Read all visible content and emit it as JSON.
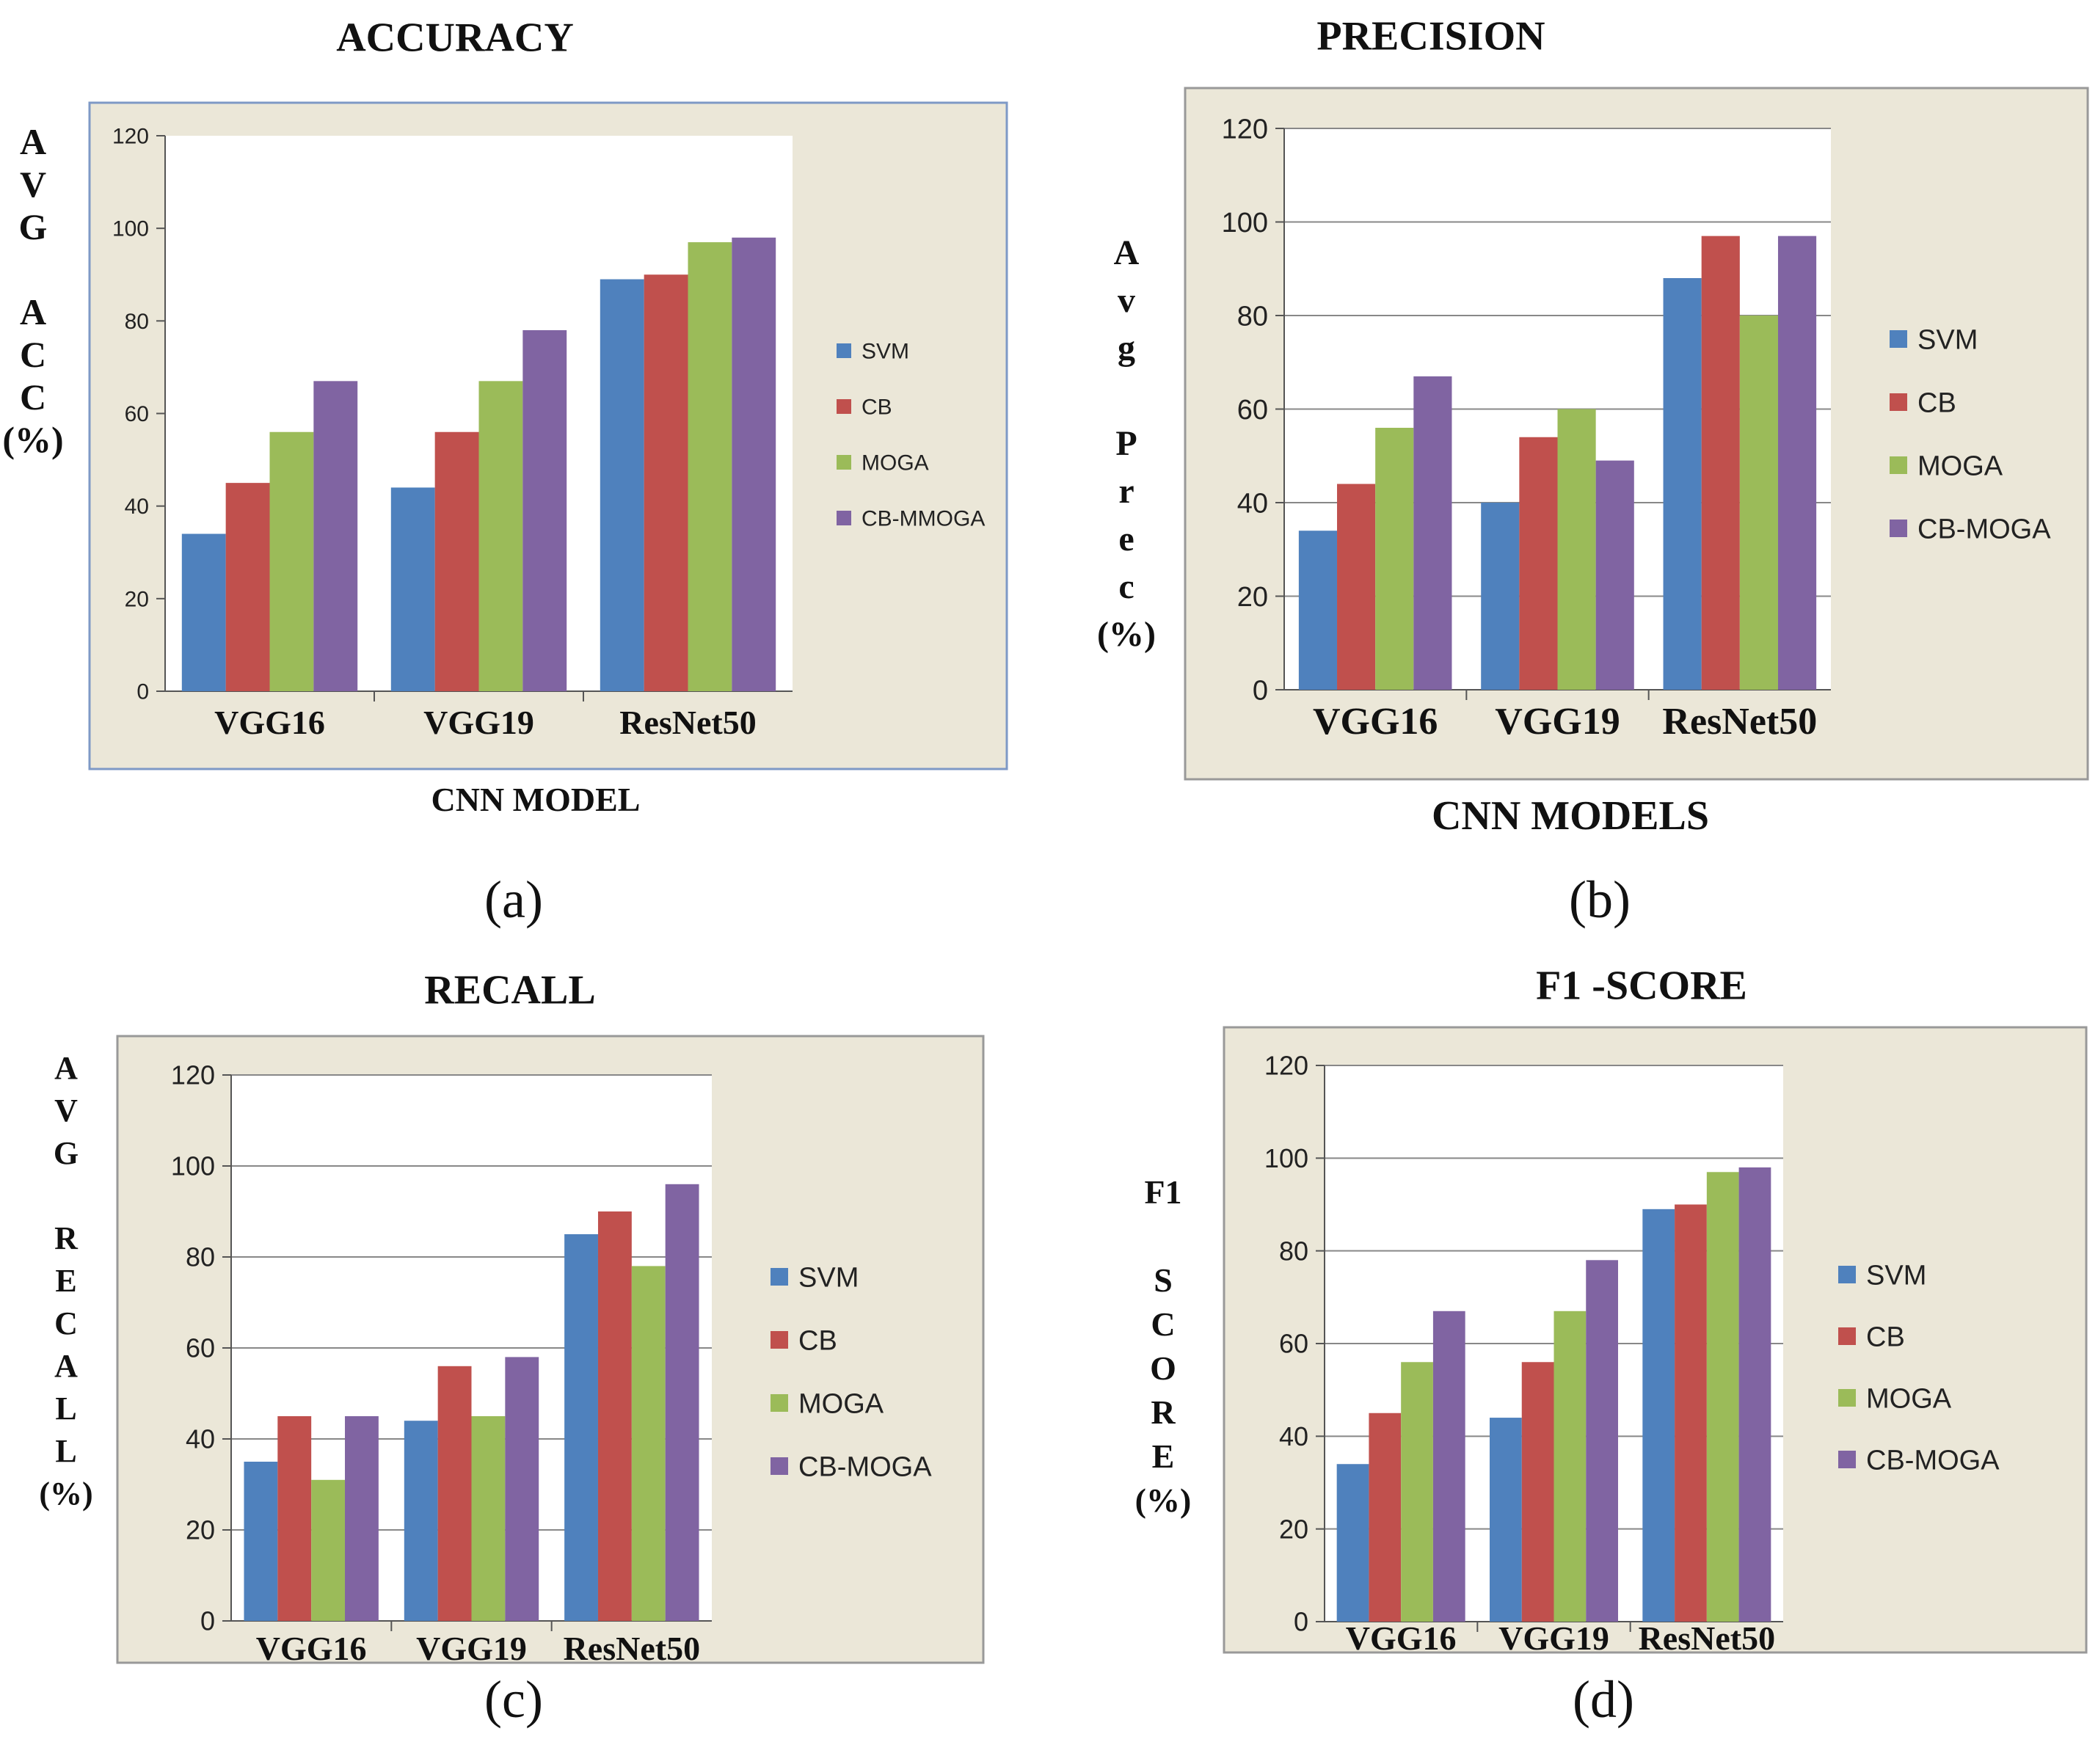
{
  "colors": {
    "SVM": "#4f81bd",
    "CB": "#c0504d",
    "MOGA": "#9bbb59",
    "CBMOGA": "#8064a2",
    "panel_bg": "#ebe7d8",
    "panel_border": "#7e99c6",
    "plot_bg": "#ffffff",
    "grid": "#888888"
  },
  "chart_data": [
    {
      "type": "bar",
      "panel_label": "(a)",
      "title": "ACCURACY",
      "ylabel": [
        "A",
        "V",
        "G",
        "",
        "A",
        "C",
        "C",
        "(%)"
      ],
      "xlabel": "CNN MODEL",
      "categories": [
        "VGG16",
        "VGG19",
        "ResNet50"
      ],
      "yticks": [
        "0",
        "20",
        "40",
        "60",
        "80",
        "100",
        "120"
      ],
      "ylim": [
        0,
        120
      ],
      "legend_position": "right",
      "series": [
        {
          "name": "SVM",
          "color_key": "SVM",
          "values": [
            34,
            44,
            89
          ]
        },
        {
          "name": "CB",
          "color_key": "CB",
          "values": [
            45,
            56,
            90
          ]
        },
        {
          "name": "MOGA",
          "color_key": "MOGA",
          "values": [
            56,
            67,
            97
          ]
        },
        {
          "name": "CB-MMOGA",
          "color_key": "CBMOGA",
          "values": [
            67,
            78,
            98
          ]
        }
      ]
    },
    {
      "type": "bar",
      "panel_label": "(b)",
      "title": "PRECISION",
      "ylabel": [
        "A",
        "v",
        "g",
        "",
        "P",
        "r",
        "e",
        "c",
        "(%)"
      ],
      "xlabel": "CNN MODELS",
      "categories": [
        "VGG16",
        "VGG19",
        "ResNet50"
      ],
      "yticks": [
        "0",
        "20",
        "40",
        "60",
        "80",
        "100",
        "120"
      ],
      "ylim": [
        0,
        120
      ],
      "legend_position": "right",
      "series": [
        {
          "name": "SVM",
          "color_key": "SVM",
          "values": [
            34,
            40,
            88
          ]
        },
        {
          "name": "CB",
          "color_key": "CB",
          "values": [
            44,
            54,
            97
          ]
        },
        {
          "name": "MOGA",
          "color_key": "MOGA",
          "values": [
            56,
            60,
            80
          ]
        },
        {
          "name": "CB-MOGA",
          "color_key": "CBMOGA",
          "values": [
            67,
            49,
            97
          ]
        }
      ]
    },
    {
      "type": "bar",
      "panel_label": "(c)",
      "title": "RECALL",
      "ylabel": [
        "A",
        "V",
        "G",
        "",
        "R",
        "E",
        "C",
        "A",
        "L",
        "L",
        "(%)"
      ],
      "xlabel": "",
      "categories": [
        "VGG16",
        "VGG19",
        "ResNet50"
      ],
      "yticks": [
        "0",
        "20",
        "40",
        "60",
        "80",
        "100",
        "120"
      ],
      "ylim": [
        0,
        120
      ],
      "legend_position": "right",
      "series": [
        {
          "name": "SVM",
          "color_key": "SVM",
          "values": [
            35,
            44,
            85
          ]
        },
        {
          "name": "CB",
          "color_key": "CB",
          "values": [
            45,
            56,
            90
          ]
        },
        {
          "name": "MOGA",
          "color_key": "MOGA",
          "values": [
            31,
            45,
            78
          ]
        },
        {
          "name": "CB-MOGA",
          "color_key": "CBMOGA",
          "values": [
            45,
            58,
            96
          ]
        }
      ]
    },
    {
      "type": "bar",
      "panel_label": "(d)",
      "title": "F1 -SCORE",
      "ylabel": [
        "F1",
        "",
        "S",
        "C",
        "O",
        "R",
        "E",
        "(%)"
      ],
      "xlabel": "",
      "categories": [
        "VGG16",
        "VGG19",
        "ResNet50"
      ],
      "yticks": [
        "0",
        "20",
        "40",
        "60",
        "80",
        "100",
        "120"
      ],
      "ylim": [
        0,
        120
      ],
      "legend_position": "right",
      "series": [
        {
          "name": "SVM",
          "color_key": "SVM",
          "values": [
            34,
            44,
            89
          ]
        },
        {
          "name": "CB",
          "color_key": "CB",
          "values": [
            45,
            56,
            90
          ]
        },
        {
          "name": "MOGA",
          "color_key": "MOGA",
          "values": [
            56,
            67,
            97
          ]
        },
        {
          "name": "CB-MOGA",
          "color_key": "CBMOGA",
          "values": [
            67,
            78,
            98
          ]
        }
      ]
    }
  ]
}
